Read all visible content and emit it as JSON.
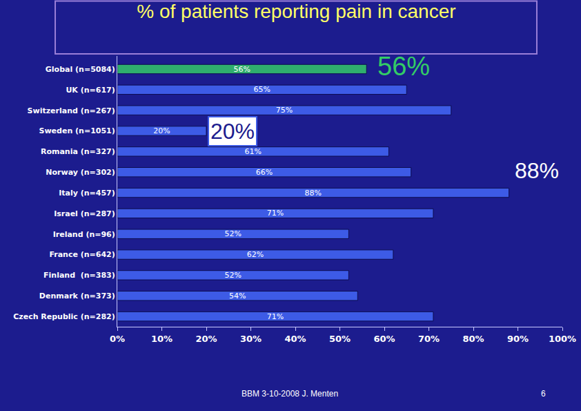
{
  "chart_data": {
    "type": "bar",
    "title": "% of patients reporting pain in cancer",
    "orientation": "horizontal",
    "categories": [
      "Global (n=5084)",
      "UK (n=617)",
      "Switzerland (n=267)",
      "Sweden (n=1051)",
      "Romania (n=327)",
      "Norway (n=302)",
      "Italy (n=457)",
      "Israel (n=287)",
      "Ireland (n=96)",
      "France (n=642)",
      "Finland  (n=383)",
      "Denmark (n=373)",
      "Czech Republic (n=282)"
    ],
    "values": [
      56,
      65,
      75,
      20,
      61,
      66,
      88,
      71,
      52,
      62,
      52,
      54,
      71
    ],
    "value_labels": [
      "56%",
      "65%",
      "75%",
      "20%",
      "61%",
      "66%",
      "88%",
      "71%",
      "52%",
      "62%",
      "52%",
      "54%",
      "71%"
    ],
    "colors": [
      "#2fae6e",
      "#3d5be6",
      "#3d5be6",
      "#3d5be6",
      "#3d5be6",
      "#3d5be6",
      "#3d5be6",
      "#3d5be6",
      "#3d5be6",
      "#3d5be6",
      "#3d5be6",
      "#3d5be6",
      "#3d5be6"
    ],
    "data_labels": true,
    "grid": false,
    "xlim": [
      0,
      100
    ],
    "xticks": [
      {
        "value": 0,
        "label": "0%"
      },
      {
        "value": 10,
        "label": "10%"
      },
      {
        "value": 20,
        "label": "20%"
      },
      {
        "value": 30,
        "label": "30%"
      },
      {
        "value": 40,
        "label": "40%"
      },
      {
        "value": 50,
        "label": "50%"
      },
      {
        "value": 60,
        "label": "60%"
      },
      {
        "value": 70,
        "label": "70%"
      },
      {
        "value": 80,
        "label": "80%"
      },
      {
        "value": 90,
        "label": "90%"
      },
      {
        "value": 100,
        "label": "100%"
      }
    ],
    "annotations": [
      {
        "text": "56%",
        "category": "Global (n=5084)"
      },
      {
        "text": "20%",
        "category": "Sweden (n=1051)"
      },
      {
        "text": "88%",
        "category": "Italy (n=457)"
      }
    ],
    "footer": "BBM 3-10-2008 J. Menten",
    "page_number": "6"
  }
}
